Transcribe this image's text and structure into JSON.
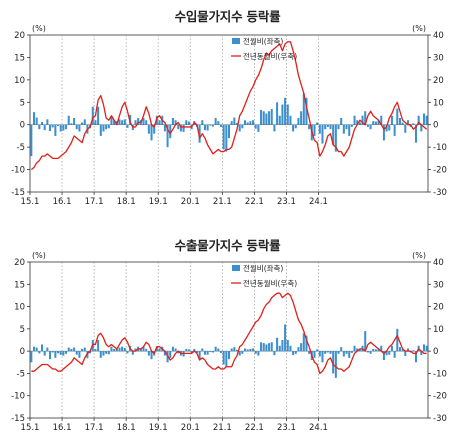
{
  "chart_data": [
    {
      "type": "bar+line",
      "title": "수입물가지수 등락률",
      "left_unit": "(%)",
      "right_unit": "(%)",
      "ylim_left": [
        -15,
        20
      ],
      "ylim_right": [
        -30,
        40
      ],
      "left_ticks": [
        20,
        15,
        10,
        5,
        0,
        -5,
        -10,
        -15
      ],
      "right_ticks": [
        40,
        30,
        20,
        10,
        0,
        -10,
        -20,
        -30
      ],
      "x_labels": [
        "15.1",
        "16.1",
        "17.1",
        "18.1",
        "19.1",
        "20.1",
        "21.1",
        "22.1",
        "23.1",
        "24.1"
      ],
      "grid": "vertical dotted at January",
      "legend_position": "top-center",
      "series": [
        {
          "name": "전월비(좌축)",
          "kind": "bar",
          "axis": "left",
          "color": "#3a8fce",
          "values": [
            -7.0,
            2.8,
            1.6,
            -1.0,
            0.6,
            -1.2,
            1.2,
            -1.4,
            -0.6,
            -2.5,
            -0.3,
            -1.5,
            -1.3,
            -1.0,
            2.0,
            0.3,
            1.5,
            -1.0,
            -1.5,
            0.5,
            1.2,
            -2.0,
            -0.8,
            4.0,
            1.0,
            4.0,
            -2.5,
            -1.5,
            -1.0,
            -0.8,
            1.6,
            1.0,
            0.8,
            1.2,
            1.0,
            1.2,
            -0.7,
            2.2,
            -1.2,
            1.0,
            1.5,
            1.0,
            1.5,
            1.0,
            -2.0,
            -3.5,
            -2.0,
            2.0,
            1.0,
            2.0,
            -1.5,
            -5.0,
            -3.0,
            1.5,
            1.0,
            -1.0,
            -1.5,
            -1.6,
            1.0,
            0.7,
            -1.0,
            0.8,
            -0.5,
            -4.0,
            1.0,
            -1.2,
            -1.3,
            -0.2,
            -0.4,
            1.5,
            0.8,
            -0.5,
            -5.5,
            -6.0,
            -3.0,
            0.8,
            1.6,
            0.4,
            -1.5,
            -0.8,
            1.0,
            0.5,
            0.8,
            1.0,
            -0.9,
            -1.6,
            3.3,
            3.0,
            2.5,
            3.0,
            3.5,
            -1.5,
            5.0,
            2.0,
            4.5,
            6.0,
            4.5,
            2.0,
            -1.5,
            -0.8,
            1.5,
            3.0,
            7.0,
            6.0,
            -1.0,
            -3.5,
            -2.5,
            0.5,
            -2.0,
            -4.2,
            -1.0,
            -0.5,
            -1.0,
            -4.5,
            -6.0,
            -1.0,
            1.5,
            -2.0,
            -1.0,
            -2.5,
            -0.5,
            2.0,
            1.0,
            0.5,
            2.0,
            3.0,
            -0.5,
            -1.0,
            0.8,
            0.7,
            1.0,
            2.0,
            -3.5,
            -1.5,
            -1.3,
            2.0,
            -2.5,
            3.6,
            1.5,
            0.5,
            -1.8,
            1.0,
            -0.5,
            0.3,
            -4.0,
            2.0,
            -1.5,
            2.5,
            2.0
          ]
        },
        {
          "name": "전년동월비(우축)",
          "kind": "line",
          "axis": "right",
          "color": "#e0201b",
          "values": [
            -20,
            -19,
            -17,
            -16,
            -14,
            -14,
            -13,
            -14,
            -15,
            -15,
            -15,
            -14,
            -13,
            -12,
            -10,
            -8,
            -5,
            -6,
            -7,
            -8,
            -4,
            -2,
            -1,
            3,
            4,
            11,
            13,
            9,
            3,
            2,
            4,
            2,
            0,
            4,
            8,
            10,
            6,
            1,
            -1,
            -1,
            1,
            1,
            4,
            8,
            5,
            0,
            -1,
            3,
            4,
            2,
            1,
            -2,
            -4,
            -2,
            0,
            1,
            -1,
            -1,
            -1,
            -1,
            -1,
            1,
            0,
            -6,
            -4,
            -6,
            -9,
            -11,
            -13,
            -12,
            -11,
            -12,
            -12,
            -11,
            -11,
            -10,
            -6,
            -2,
            4,
            6,
            9,
            12,
            15,
            17,
            20,
            22,
            25,
            29,
            32,
            31,
            33,
            34,
            35,
            36,
            33,
            36,
            37,
            37,
            33,
            28,
            22,
            18,
            14,
            8,
            3,
            -3,
            -7,
            -8,
            -14,
            -12,
            -9,
            -5,
            -4,
            -9,
            -10,
            -12,
            -12,
            -14,
            -12,
            -10,
            -6,
            -2,
            0,
            2,
            1,
            0,
            4,
            6,
            4,
            3,
            2,
            0,
            -2,
            -1,
            3,
            5,
            8,
            10,
            6,
            2,
            1,
            0,
            0,
            -2,
            -1,
            1,
            0,
            -1,
            -2
          ]
        }
      ]
    },
    {
      "type": "bar+line",
      "title": "수출물가지수 등락률",
      "left_unit": "(%)",
      "right_unit": "(%)",
      "ylim_left": [
        -15,
        20
      ],
      "ylim_right": [
        -30,
        40
      ],
      "left_ticks": [
        20,
        15,
        10,
        5,
        0,
        -5,
        -10,
        -15
      ],
      "right_ticks": [
        40,
        30,
        20,
        10,
        0,
        -10,
        -20,
        -30
      ],
      "x_labels": [
        "15.1",
        "16.1",
        "17.1",
        "18.1",
        "19.1",
        "20.1",
        "21.1",
        "22.1",
        "23.1",
        "24.1"
      ],
      "grid": "vertical dotted at January",
      "legend_position": "top-center",
      "series": [
        {
          "name": "전월비(좌축)",
          "kind": "bar",
          "axis": "left",
          "color": "#3a8fce",
          "values": [
            -2.5,
            1.0,
            0.8,
            -0.5,
            1.5,
            -1.0,
            0.8,
            -1.8,
            -0.3,
            -1.5,
            -0.5,
            -0.8,
            -1.0,
            -0.6,
            0.8,
            0.5,
            0.8,
            -0.8,
            -1.5,
            0.5,
            0.8,
            -1.6,
            -0.5,
            2.5,
            0.5,
            2.5,
            -1.5,
            -1.0,
            -0.6,
            -0.7,
            1.0,
            0.5,
            0.5,
            0.8,
            1.0,
            0.7,
            -0.5,
            1.2,
            -0.8,
            0.6,
            1.0,
            0.6,
            1.0,
            0.5,
            -1.0,
            -1.8,
            -1.0,
            1.0,
            0.6,
            1.0,
            -1.0,
            -2.5,
            -1.5,
            1.0,
            0.6,
            -0.5,
            -1.0,
            -1.2,
            0.5,
            0.4,
            -0.6,
            0.5,
            -0.4,
            -2.0,
            0.6,
            -0.8,
            -0.8,
            -0.2,
            -0.3,
            1.0,
            0.6,
            -0.4,
            -3.0,
            -3.5,
            -1.8,
            0.6,
            0.9,
            0.3,
            -1.0,
            -0.6,
            0.6,
            0.4,
            0.5,
            0.6,
            -0.6,
            -1.0,
            2.0,
            1.8,
            1.5,
            1.8,
            2.0,
            -0.9,
            3.0,
            1.2,
            2.5,
            6.0,
            2.5,
            1.2,
            -0.9,
            -0.6,
            0.9,
            1.8,
            4.0,
            3.5,
            -0.6,
            -2.0,
            -1.5,
            0.4,
            -1.2,
            -2.5,
            -0.6,
            -0.3,
            -0.6,
            -5.0,
            -6.0,
            -0.6,
            0.9,
            -1.2,
            -0.6,
            -1.5,
            -0.4,
            1.2,
            0.6,
            0.4,
            1.2,
            4.5,
            -0.3,
            -0.6,
            0.5,
            0.4,
            0.6,
            1.2,
            -2.0,
            -0.9,
            -0.8,
            1.2,
            -1.5,
            5.0,
            0.9,
            0.4,
            -1.1,
            0.6,
            -0.3,
            0.2,
            -2.5,
            1.2,
            -0.9,
            1.5,
            1.2
          ]
        },
        {
          "name": "전년동월비(우축)",
          "kind": "line",
          "axis": "right",
          "color": "#e0201b",
          "values": [
            -9,
            -9,
            -8,
            -7,
            -6,
            -6,
            -6,
            -7,
            -8,
            -8,
            -9,
            -9,
            -8,
            -7,
            -6,
            -5,
            -3,
            -4,
            -5,
            -6,
            -3,
            -1,
            0,
            3,
            3,
            7,
            8,
            6,
            3,
            2,
            3,
            2,
            1,
            3,
            5,
            6,
            4,
            1,
            0,
            0,
            1,
            1,
            2,
            4,
            3,
            0,
            -1,
            2,
            2,
            1,
            0,
            -2,
            -4,
            -3,
            -1,
            0,
            -1,
            -1,
            -1,
            -1,
            -1,
            0,
            -1,
            -4,
            -3,
            -4,
            -6,
            -7,
            -8,
            -8,
            -7,
            -8,
            -8,
            -7,
            -7,
            -7,
            -4,
            -2,
            2,
            3,
            5,
            7,
            9,
            11,
            13,
            14,
            16,
            19,
            21,
            22,
            24,
            25,
            26,
            26,
            24,
            25,
            26,
            25,
            22,
            18,
            14,
            12,
            9,
            5,
            2,
            -2,
            -5,
            -6,
            -10,
            -9,
            -7,
            -4,
            -3,
            -6,
            -7,
            -8,
            -8,
            -9,
            -8,
            -7,
            -4,
            -1,
            0,
            1,
            1,
            0,
            3,
            4,
            3,
            2,
            1,
            0,
            -1,
            0,
            2,
            3,
            5,
            7,
            4,
            1,
            0,
            0,
            0,
            -1,
            -1,
            1,
            0,
            -1,
            -1
          ]
        }
      ]
    }
  ]
}
